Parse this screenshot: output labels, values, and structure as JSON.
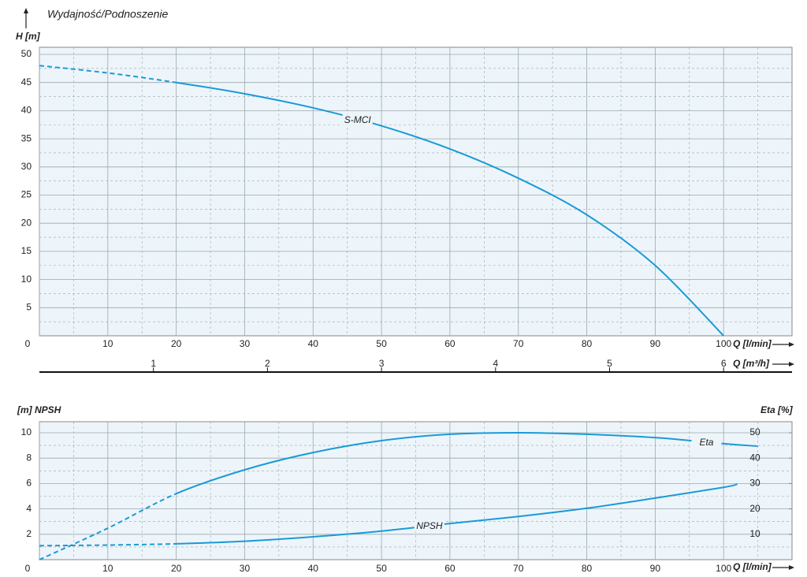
{
  "chart_data": [
    {
      "type": "line",
      "title": "Wydajność/Podnoszenie",
      "y_label": "H [m]",
      "x_label": "Q [l/min]",
      "x2_label": "Q [m³/h]",
      "x": [
        0,
        10,
        20,
        30,
        40,
        50,
        60,
        70,
        80,
        90,
        100
      ],
      "series": [
        {
          "name": "S-MCI",
          "color": "#1a9ad6",
          "dashed_until_x": 20,
          "values": [
            48,
            46.7,
            45,
            43,
            40.5,
            37.3,
            33.2,
            28,
            21.5,
            12.5,
            0
          ]
        }
      ],
      "xlim": [
        0,
        110
      ],
      "xticks": [
        0,
        10,
        20,
        30,
        40,
        50,
        60,
        70,
        80,
        90,
        100
      ],
      "ylim": [
        0,
        50
      ],
      "yticks": [
        5,
        10,
        15,
        20,
        25,
        30,
        35,
        40,
        45,
        50
      ],
      "x2lim": [
        0,
        6.6
      ],
      "x2ticks": [
        1,
        2,
        3,
        4,
        5,
        6
      ],
      "grid": true
    },
    {
      "type": "line",
      "y_label": "[m]  NPSH",
      "y2_label": "Eta [%]",
      "x_label": "Q [l/min]",
      "series": [
        {
          "name": "Eta",
          "color": "#1a9ad6",
          "axis": "y2",
          "dashed_until_x": 20,
          "x": [
            0,
            10,
            20,
            30,
            40,
            50,
            60,
            70,
            80,
            90,
            100,
            105
          ],
          "values": [
            0,
            12.4,
            26,
            35.4,
            42.2,
            46.9,
            49.4,
            50,
            49.4,
            48.1,
            45.7,
            44.7
          ]
        },
        {
          "name": "NPSH",
          "color": "#1a9ad6",
          "dashed_until_x": 20,
          "x": [
            0,
            10,
            20,
            30,
            40,
            50,
            60,
            70,
            80,
            90,
            100,
            102
          ],
          "values": [
            1.1,
            1.15,
            1.25,
            1.45,
            1.8,
            2.25,
            2.85,
            3.4,
            4.05,
            4.85,
            5.7,
            5.95
          ]
        }
      ],
      "xlim": [
        0,
        110
      ],
      "xticks": [
        0,
        10,
        20,
        30,
        40,
        50,
        60,
        70,
        80,
        90,
        100
      ],
      "ylim": [
        0,
        10
      ],
      "yticks": [
        2,
        4,
        6,
        8,
        10
      ],
      "y2lim": [
        0,
        50
      ],
      "y2ticks": [
        10,
        20,
        30,
        40,
        50
      ],
      "grid": true
    }
  ]
}
